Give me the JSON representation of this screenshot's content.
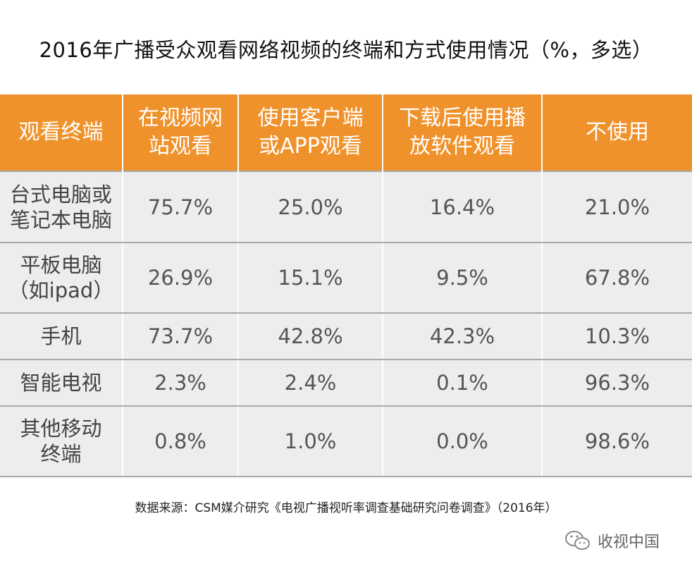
{
  "title": "2016年广播受众观看网络视频的终端和方式使用情况（%，多选）",
  "chart_data": {
    "type": "table",
    "columns": [
      "观看终端",
      "在视频网站观看",
      "使用客户端或APP观看",
      "下载后使用播放软件观看",
      "不使用"
    ],
    "rows": [
      {
        "terminal": [
          "台式电脑或",
          "笔记本电脑"
        ],
        "values": [
          "75.7%",
          "25.0%",
          "16.4%",
          "21.0%"
        ]
      },
      {
        "terminal": [
          "平板电脑",
          "（如ipad）"
        ],
        "values": [
          "26.9%",
          "15.1%",
          "9.5%",
          "67.8%"
        ]
      },
      {
        "terminal": [
          "手机"
        ],
        "values": [
          "73.7%",
          "42.8%",
          "42.3%",
          "10.3%"
        ]
      },
      {
        "terminal": [
          "智能电视"
        ],
        "values": [
          "2.3%",
          "2.4%",
          "0.1%",
          "96.3%"
        ]
      },
      {
        "terminal": [
          "其他移动",
          "终端"
        ],
        "values": [
          "0.8%",
          "1.0%",
          "0.0%",
          "98.6%"
        ]
      }
    ]
  },
  "headers": [
    [
      "观看终端"
    ],
    [
      "在视频网",
      "站观看"
    ],
    [
      "使用客户端",
      "或APP观看"
    ],
    [
      "下载后使用播",
      "放软件观看"
    ],
    [
      "不使用"
    ]
  ],
  "source": "数据来源：CSM媒介研究《电视广播视听率调查基础研究问卷调查》（2016年）",
  "watermark": {
    "text": "收视中国",
    "icon": "wechat-icon"
  }
}
